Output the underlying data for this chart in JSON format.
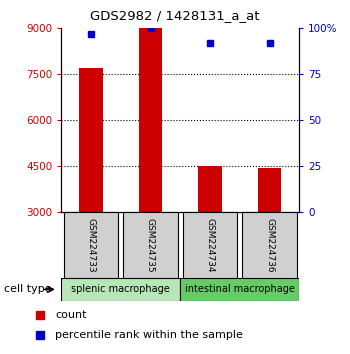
{
  "title": "GDS2982 / 1428131_a_at",
  "samples": [
    "GSM224733",
    "GSM224735",
    "GSM224734",
    "GSM224736"
  ],
  "counts": [
    7700,
    9000,
    4500,
    4450
  ],
  "percentile_ranks": [
    97,
    100,
    92,
    92
  ],
  "ylim_left": [
    3000,
    9000
  ],
  "ylim_right": [
    0,
    100
  ],
  "yticks_left": [
    3000,
    4500,
    6000,
    7500,
    9000
  ],
  "yticks_right": [
    0,
    25,
    50,
    75,
    100
  ],
  "grid_values": [
    4500,
    6000,
    7500
  ],
  "bar_color": "#cc0000",
  "dot_color": "#0000cc",
  "left_tick_color": "#cc0000",
  "right_tick_color": "#0000cc",
  "group1_label": "splenic macrophage",
  "group2_label": "intestinal macrophage",
  "group1_color": "#b8e6b8",
  "group2_color": "#66cc66",
  "sample_box_color": "#d0d0d0",
  "legend_count_label": "count",
  "legend_pct_label": "percentile rank within the sample",
  "cell_type_label": "cell type"
}
